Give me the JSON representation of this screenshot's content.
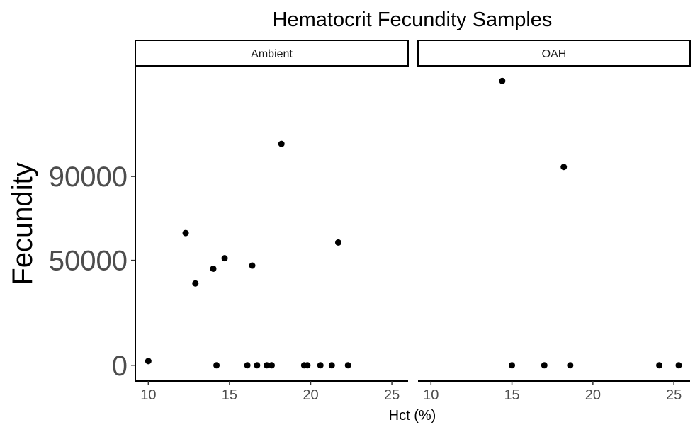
{
  "chart_data": {
    "type": "scatter",
    "title": "Hematocrit Fecundity Samples",
    "xlabel": "Hct (%)",
    "ylabel": "Fecundity",
    "xlim": [
      9.2,
      26
    ],
    "ylim": [
      -7500,
      142000
    ],
    "x_ticks": [
      10,
      15,
      20,
      25
    ],
    "y_ticks": [
      0,
      50000,
      90000
    ],
    "grid": false,
    "point_color": "#000000",
    "panels": [
      {
        "name": "Ambient",
        "points": [
          {
            "x": 10.0,
            "y": 2000
          },
          {
            "x": 12.3,
            "y": 63000
          },
          {
            "x": 12.9,
            "y": 39000
          },
          {
            "x": 14.0,
            "y": 46000
          },
          {
            "x": 14.2,
            "y": 0
          },
          {
            "x": 14.7,
            "y": 51000
          },
          {
            "x": 16.1,
            "y": 0
          },
          {
            "x": 16.4,
            "y": 47500
          },
          {
            "x": 16.7,
            "y": 0
          },
          {
            "x": 17.3,
            "y": 0
          },
          {
            "x": 17.6,
            "y": 0
          },
          {
            "x": 18.2,
            "y": 105500
          },
          {
            "x": 19.6,
            "y": 0
          },
          {
            "x": 19.8,
            "y": 0
          },
          {
            "x": 20.6,
            "y": 0
          },
          {
            "x": 21.3,
            "y": 0
          },
          {
            "x": 21.7,
            "y": 58500
          },
          {
            "x": 22.3,
            "y": 0
          }
        ]
      },
      {
        "name": "OAH",
        "points": [
          {
            "x": 14.4,
            "y": 135500
          },
          {
            "x": 15.0,
            "y": 0
          },
          {
            "x": 17.0,
            "y": 0
          },
          {
            "x": 18.2,
            "y": 94500
          },
          {
            "x": 18.6,
            "y": 0
          },
          {
            "x": 24.1,
            "y": 0
          },
          {
            "x": 25.3,
            "y": 0
          }
        ]
      }
    ]
  }
}
